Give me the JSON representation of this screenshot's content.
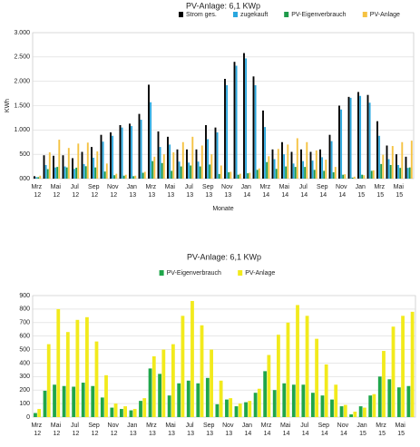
{
  "chart_data": [
    {
      "type": "bar",
      "title": "PV-Anlage: 6,1 KWp",
      "y_label": "KWh",
      "x_label": "Monate",
      "legend": "top-right",
      "grid": true,
      "categories": [
        "Mrz 12",
        null,
        "Mai 12",
        null,
        "Jul 12",
        null,
        "Sep 12",
        null,
        "Nov 12",
        null,
        "Jan 13",
        null,
        "Mrz 13",
        null,
        "Mai 13",
        null,
        "Jul 13",
        null,
        "Sep 13",
        null,
        "Nov 13",
        null,
        "Jan 14",
        null,
        "Mrz 14",
        null,
        "Mai 14",
        null,
        "Jul 14",
        null,
        "Sep 14",
        null,
        "Nov 14",
        null,
        "Jan 15",
        null,
        "Mrz 15",
        null,
        "Mai 15",
        null
      ],
      "ylim": [
        0,
        3000
      ],
      "yticks": [
        {
          "value": 0,
          "label": "000"
        },
        500,
        {
          "value": 1000,
          "label": "1.000"
        },
        {
          "value": 1500,
          "label": "1.500"
        },
        {
          "value": 2000,
          "label": "2.000"
        },
        {
          "value": 2500,
          "label": "2.500"
        },
        {
          "value": 3000,
          "label": "3.000"
        }
      ],
      "series": [
        {
          "name": "Strom ges.",
          "color": "#000000",
          "values": [
            50,
            480,
            470,
            480,
            420,
            550,
            650,
            900,
            950,
            1100,
            1130,
            1330,
            1930,
            970,
            860,
            600,
            600,
            600,
            1100,
            1050,
            2050,
            2400,
            2580,
            2100,
            1400,
            600,
            750,
            550,
            600,
            550,
            600,
            900,
            1500,
            1680,
            1780,
            1720,
            1180,
            680,
            500,
            450
          ]
        },
        {
          "name": "zugekauft",
          "color": "#2aa7de",
          "values": [
            30,
            280,
            230,
            250,
            200,
            300,
            430,
            760,
            880,
            1050,
            1080,
            1210,
            1570,
            650,
            700,
            350,
            330,
            350,
            810,
            950,
            1920,
            2320,
            2470,
            1920,
            1060,
            400,
            500,
            310,
            360,
            370,
            440,
            770,
            1420,
            1660,
            1700,
            1560,
            880,
            400,
            280,
            220
          ]
        },
        {
          "name": "PV-Eigenverbrauch",
          "color": "#1e9a4a",
          "values": [
            30,
            195,
            240,
            230,
            225,
            255,
            230,
            145,
            70,
            60,
            50,
            120,
            360,
            320,
            160,
            250,
            270,
            250,
            290,
            95,
            130,
            80,
            110,
            180,
            340,
            200,
            250,
            240,
            240,
            180,
            160,
            130,
            80,
            20,
            80,
            160,
            300,
            280,
            220,
            230
          ]
        },
        {
          "name": "PV-Anlage",
          "color": "#f5c242",
          "values": [
            60,
            540,
            800,
            630,
            720,
            740,
            560,
            310,
            100,
            80,
            60,
            140,
            450,
            500,
            540,
            750,
            860,
            680,
            500,
            270,
            140,
            100,
            120,
            210,
            460,
            610,
            700,
            830,
            750,
            580,
            390,
            240,
            90,
            40,
            70,
            170,
            490,
            670,
            750,
            780
          ]
        }
      ]
    },
    {
      "type": "bar",
      "title": "PV-Anlage: 6,1 KWp",
      "legend": "top",
      "grid": true,
      "categories": [
        "Mrz 12",
        null,
        "Mai 12",
        null,
        "Jul 12",
        null,
        "Sep 12",
        null,
        "Nov 12",
        null,
        "Jan 13",
        null,
        "Mrz 13",
        null,
        "Mai 13",
        null,
        "Jul 13",
        null,
        "Sep 13",
        null,
        "Nov 13",
        null,
        "Jan 14",
        null,
        "Mrz 14",
        null,
        "Mai 14",
        null,
        "Jul 14",
        null,
        "Sep 14",
        null,
        "Nov 14",
        null,
        "Jan 15",
        null,
        "Mrz 15",
        null,
        "Mai 15",
        null
      ],
      "ylim": [
        0,
        900
      ],
      "yticks": [
        0,
        100,
        200,
        300,
        400,
        500,
        600,
        700,
        800,
        900
      ],
      "series": [
        {
          "name": "PV-Eigenverbrauch",
          "color": "#1fa64a",
          "values": [
            30,
            195,
            240,
            230,
            225,
            255,
            230,
            145,
            70,
            60,
            50,
            120,
            360,
            320,
            160,
            250,
            270,
            250,
            290,
            95,
            130,
            80,
            110,
            180,
            340,
            200,
            250,
            240,
            240,
            180,
            160,
            130,
            80,
            20,
            80,
            160,
            300,
            280,
            220,
            230
          ]
        },
        {
          "name": "PV-Anlage",
          "color": "#f2ea1c",
          "values": [
            60,
            540,
            800,
            630,
            720,
            740,
            560,
            310,
            100,
            80,
            60,
            140,
            450,
            500,
            540,
            750,
            860,
            680,
            500,
            270,
            140,
            100,
            120,
            210,
            460,
            610,
            700,
            830,
            750,
            580,
            390,
            240,
            90,
            40,
            70,
            170,
            490,
            670,
            750,
            780
          ]
        }
      ]
    }
  ]
}
